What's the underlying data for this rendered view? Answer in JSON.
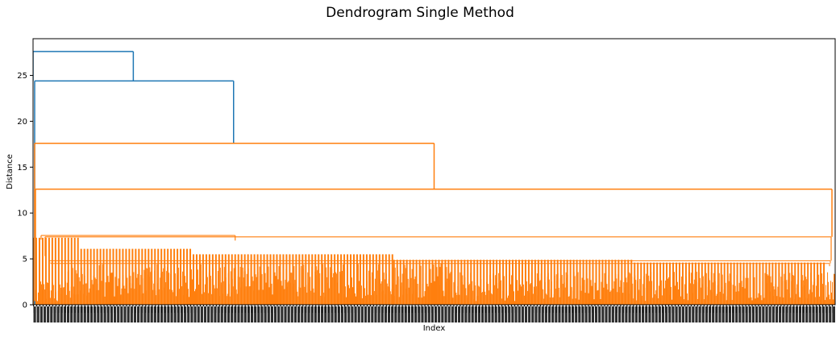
{
  "chart_data": {
    "type": "dendrogram",
    "title": "Dendrogram Single Method",
    "xlabel": "Index",
    "ylabel": "Distance",
    "ylim": [
      0,
      29
    ],
    "yticks": [
      0,
      5,
      10,
      15,
      20,
      25
    ],
    "grid": false,
    "legend": "none",
    "leaf_count": 1000,
    "colors": {
      "upper_cluster": "#1f77b4",
      "lower_cluster": "#ff7f0e",
      "axis": "#000000",
      "background": "#ffffff"
    },
    "merge_heights": [
      27.6,
      24.4,
      17.6,
      12.6,
      7.4,
      4.8,
      4.5,
      4.2,
      3.0,
      0.5
    ],
    "clusters": {
      "upper": {
        "merge_heights": [
          27.6,
          24.4
        ]
      },
      "lower": {
        "merge_heights": [
          17.6,
          12.6,
          7.4,
          4.8,
          4.5,
          4.2
        ]
      }
    }
  }
}
